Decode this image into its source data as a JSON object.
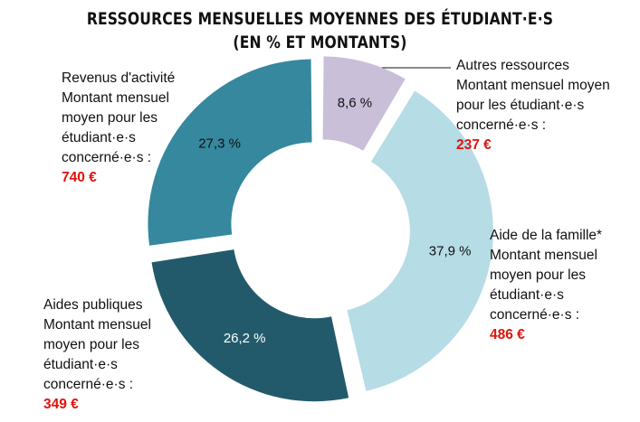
{
  "title_line1": "RESSOURCES MENSUELLES MOYENNES DES ÉTUDIANT·E·S",
  "title_line2": "(EN % ET MONTANTS)",
  "colors": {
    "autres": "#c9bfd9",
    "famille": "#b6dce6",
    "aides": "#235a6b",
    "revenus": "#35889e",
    "amount": "#e3120b"
  },
  "chart_data": {
    "type": "pie",
    "title": "RESSOURCES MENSUELLES MOYENNES DES ÉTUDIANT·E·S (EN % ET MONTANTS)",
    "slices": [
      {
        "name": "Autres ressources",
        "value": 8.6,
        "value_label": "8,6 %",
        "amount": "237 €"
      },
      {
        "name": "Aide de la famille*",
        "value": 37.9,
        "value_label": "37,9 %",
        "amount": "486 €"
      },
      {
        "name": "Aides publiques",
        "value": 26.2,
        "value_label": "26,2 %",
        "amount": "349 €"
      },
      {
        "name": "Revenus d'activité",
        "value": 27.3,
        "value_label": "27,3 %",
        "amount": "740 €"
      }
    ]
  },
  "labels": {
    "revenus": {
      "line1": "Revenus d'activité",
      "line2": "Montant mensuel",
      "line3": "moyen pour les",
      "line4": "étudiant·e·s",
      "line5": "concerné·e·s :",
      "amount": "740 €"
    },
    "autres": {
      "line1": "Autres ressources",
      "line2": "Montant mensuel moyen",
      "line3": "pour les étudiant·e·s",
      "line4": "concerné·e·s :",
      "amount": "237 €"
    },
    "famille": {
      "line1": "Aide de la famille*",
      "line2": "Montant mensuel",
      "line3": "moyen pour les",
      "line4": "étudiant·e·s",
      "line5": "concerné·e·s :",
      "amount": "486 €"
    },
    "aides": {
      "line1": "Aides publiques",
      "line2": "Montant mensuel",
      "line3": "moyen pour les",
      "line4": "étudiant·e·s",
      "line5": "concerné·e·s :",
      "amount": "349 €"
    }
  }
}
